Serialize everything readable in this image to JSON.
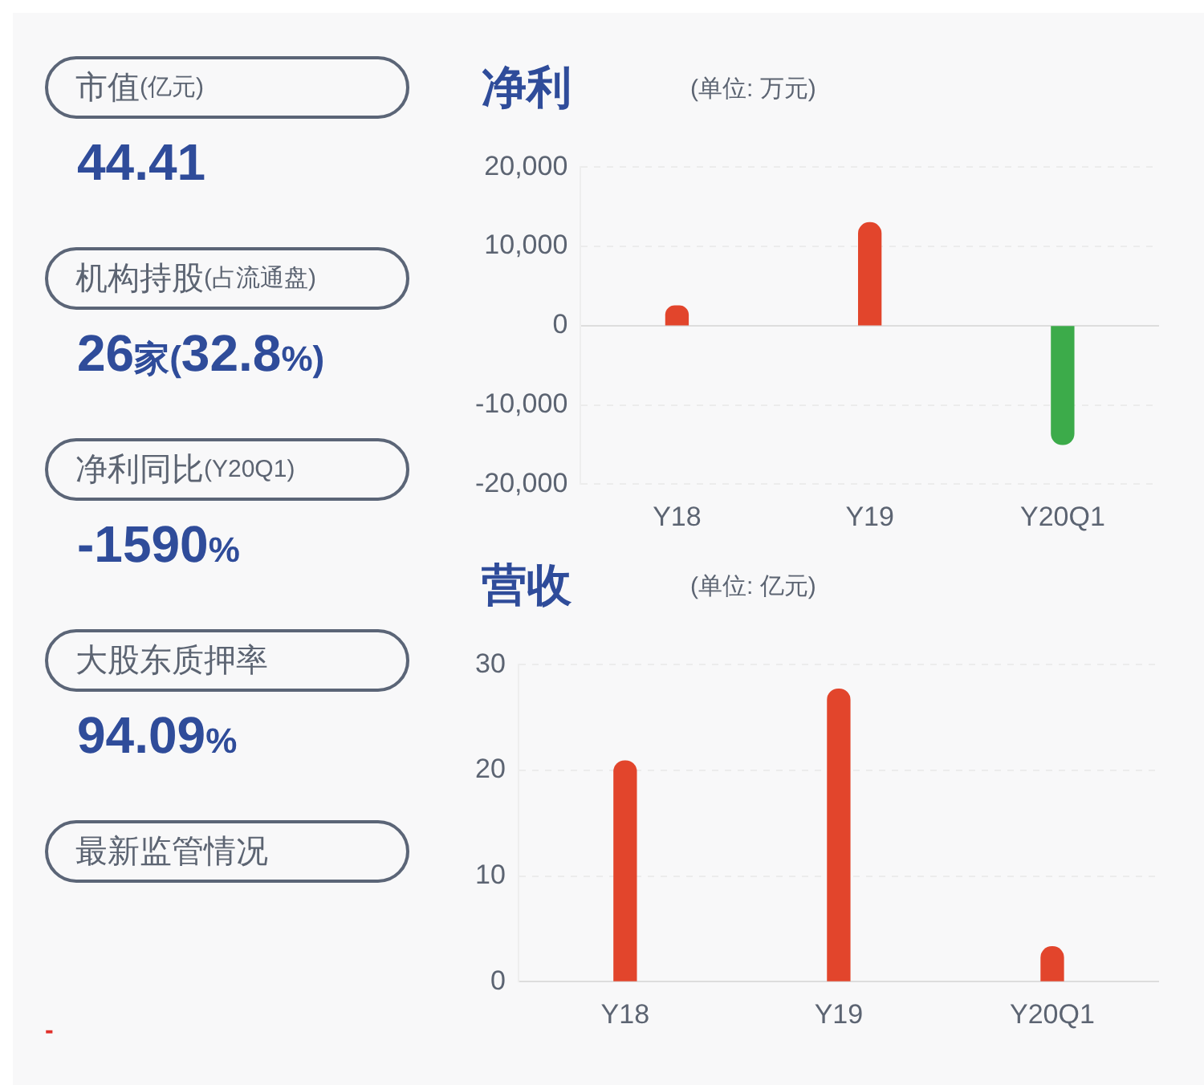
{
  "chart_data": [
    {
      "type": "other",
      "annotations": [
        "市值(亿元)",
        "44.41",
        "机构持股(占流通盘)",
        "26家(32.8%)",
        "净利同比(Y20Q1)",
        "-1590%",
        "大股东质押率",
        "94.09%",
        "最新监管情况",
        "-"
      ]
    },
    {
      "type": "bar",
      "title": "净利",
      "subtitle": "(单位: 万元)",
      "categories": [
        "Y18",
        "Y19",
        "Y20Q1"
      ],
      "values": [
        2500,
        13000,
        -15000
      ],
      "colors": [
        "#e2452c",
        "#e2452c",
        "#3cab4a"
      ],
      "ylim": [
        -20000,
        20000
      ],
      "yticks": [
        {
          "value": -20000,
          "label": "-20,000"
        },
        {
          "value": -10000,
          "label": "-10,000"
        },
        0,
        {
          "value": 10000,
          "label": "10,000"
        },
        {
          "value": 20000,
          "label": "20,000"
        }
      ],
      "grid": "y"
    },
    {
      "type": "bar",
      "title": "营收",
      "subtitle": "(单位: 亿元)",
      "categories": [
        "Y18",
        "Y19",
        "Y20Q1"
      ],
      "values": [
        20.9,
        27.7,
        3.3
      ],
      "color": "#e2452c",
      "ylim": [
        0,
        30
      ],
      "yticks": [
        0,
        10,
        20,
        30
      ],
      "grid": "y"
    }
  ]
}
